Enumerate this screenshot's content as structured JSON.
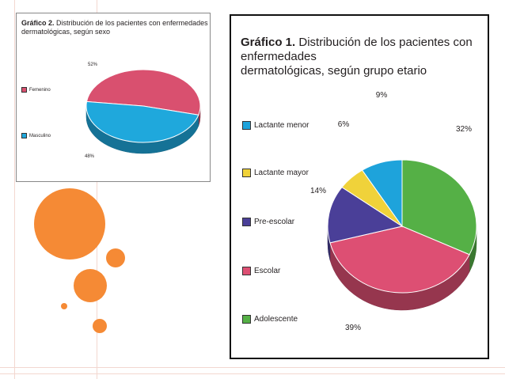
{
  "charts": [
    {
      "id": "sexo",
      "title_label": "Gráfico 2.",
      "title_line1": "Distribución de los pacientes con enfermedades",
      "title_line2": "dermatológicas, según sexo",
      "legend": [
        {
          "label": "Femenino",
          "color": "#d9506f"
        },
        {
          "label": "Masculino",
          "color": "#1fa8dc"
        }
      ],
      "slice_labels": [
        "52%",
        "48%"
      ]
    },
    {
      "id": "etario",
      "title_label": "Gráfico 1.",
      "title_line1": "Distribución de los pacientes con enfermedades",
      "title_line2": "dermatológicas, según grupo etario",
      "legend": [
        {
          "label": "Lactante menor",
          "color": "#1ea3db"
        },
        {
          "label": "Lactante mayor",
          "color": "#f0d23a"
        },
        {
          "label": "Pre-escolar",
          "color": "#4a3f98"
        },
        {
          "label": "Escolar",
          "color": "#dd4f73"
        },
        {
          "label": "Adolescente",
          "color": "#55b046"
        }
      ],
      "slice_labels": [
        "32%",
        "39%",
        "14%",
        "6%",
        "9%"
      ]
    }
  ],
  "chart_data": [
    {
      "type": "pie",
      "title": "Gráfico 2. Distribución de los pacientes con enfermedades dermatológicas, según sexo",
      "categories": [
        "Femenino",
        "Masculino"
      ],
      "values": [
        52,
        48
      ],
      "unit": "%",
      "colors": [
        "#d9506f",
        "#1fa8dc"
      ],
      "style": "3d",
      "legend": "left"
    },
    {
      "type": "pie",
      "title": "Gráfico 1. Distribución de los pacientes con enfermedades dermatológicas, según grupo etario",
      "categories": [
        "Adolescente",
        "Escolar",
        "Pre-escolar",
        "Lactante mayor",
        "Lactante menor"
      ],
      "values": [
        32,
        39,
        14,
        6,
        9
      ],
      "unit": "%",
      "colors": [
        "#55b046",
        "#dd4f73",
        "#4a3f98",
        "#f0d23a",
        "#1ea3db"
      ],
      "style": "3d",
      "legend": "left"
    }
  ]
}
